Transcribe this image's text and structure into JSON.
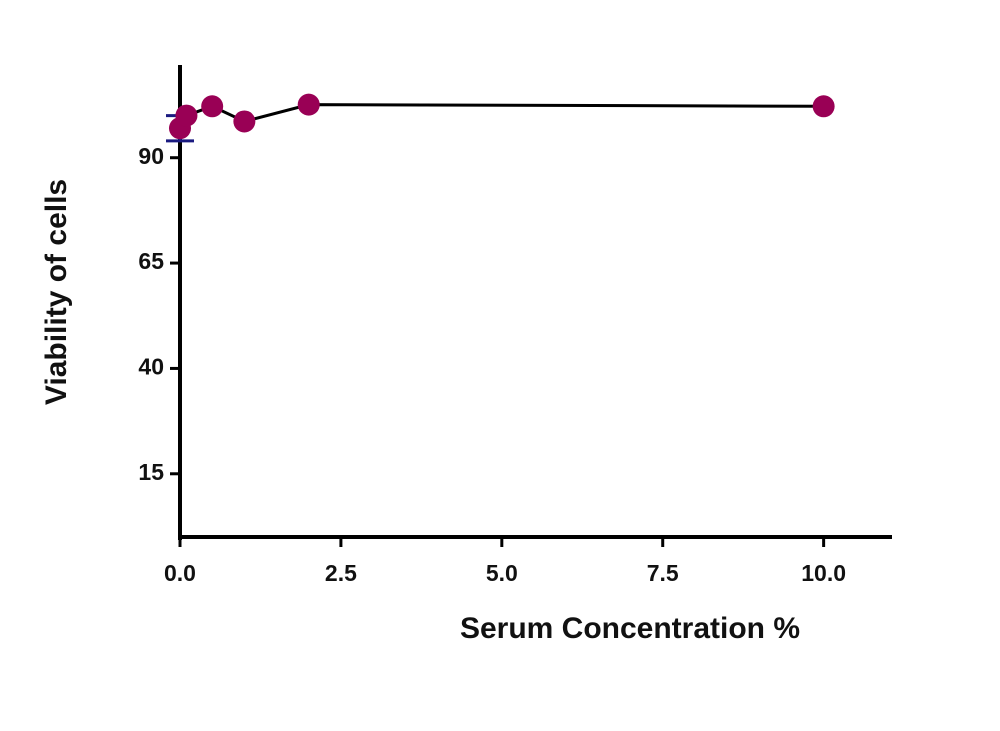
{
  "chart_data": {
    "type": "line",
    "x_label": "Serum Concentration  %",
    "y_label": "Viability of cells",
    "x": [
      0,
      0.1,
      0.5,
      1,
      2,
      10
    ],
    "series": [
      {
        "values": [
          97,
          100,
          102.2,
          98.6,
          102.6,
          102.2
        ],
        "errors": [
          3,
          null,
          null,
          null,
          null,
          null
        ],
        "color": "#990055",
        "line_color": "#000000",
        "error_color": "#1a1a80"
      }
    ],
    "xlim": [
      0,
      11
    ],
    "ylim": [
      0,
      112
    ],
    "xticks": [
      {
        "value": 0,
        "label": "0.0"
      },
      {
        "value": 2.5,
        "label": "2.5"
      },
      {
        "value": 5,
        "label": "5.0"
      },
      {
        "value": 7.5,
        "label": "7.5"
      },
      {
        "value": 10,
        "label": "10.0"
      }
    ],
    "yticks": [
      15,
      40,
      65,
      90
    ],
    "grid": false
  }
}
